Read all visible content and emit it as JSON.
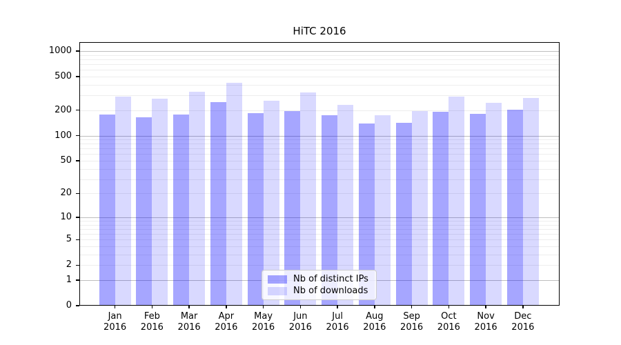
{
  "chart_data": {
    "type": "bar",
    "title": "HiTC 2016",
    "categories": [
      "Jan",
      "Feb",
      "Mar",
      "Apr",
      "May",
      "Jun",
      "Jul",
      "Aug",
      "Sep",
      "Oct",
      "Nov",
      "Dec"
    ],
    "category_year": "2016",
    "series": [
      {
        "name": "Nb of distinct IPs",
        "color": "rgba(0,0,255,0.35)",
        "values": [
          176,
          162,
          176,
          245,
          182,
          192,
          170,
          136,
          138,
          189,
          177,
          198
        ]
      },
      {
        "name": "Nb of downloads",
        "color": "rgba(0,0,255,0.15)",
        "values": [
          287,
          270,
          324,
          417,
          252,
          318,
          227,
          172,
          193,
          287,
          242,
          272
        ]
      }
    ],
    "xlabel": "",
    "ylabel": "",
    "yscale": "log1p",
    "ylim": [
      0,
      1280
    ],
    "yticks": [
      0,
      1,
      2,
      5,
      10,
      20,
      50,
      100,
      200,
      500,
      1000
    ],
    "grid": true,
    "gridline_major_color": "#bdbdbd",
    "gridline_minor_color": "#ededed",
    "legend_position": "lower center",
    "axis_color": "#000000",
    "background_color": "#ffffff"
  }
}
